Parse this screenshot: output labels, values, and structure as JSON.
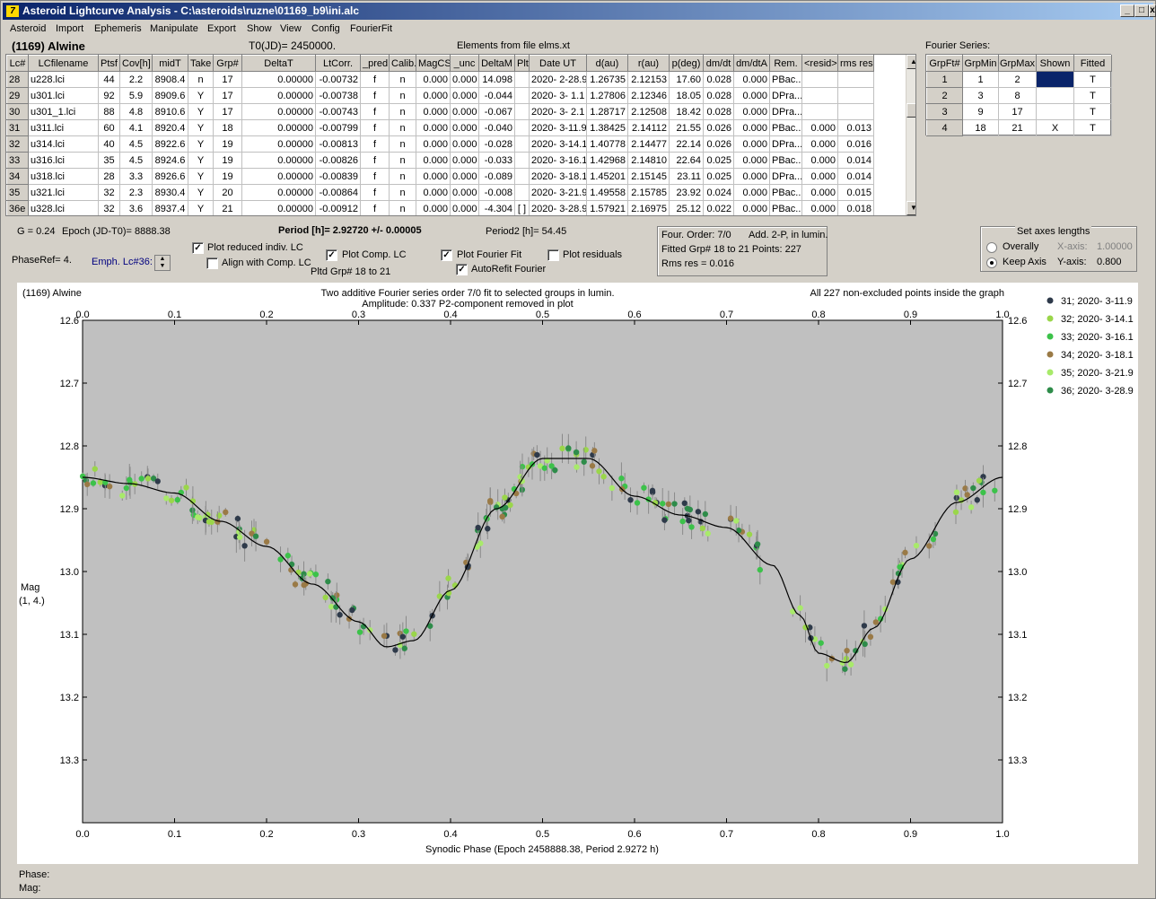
{
  "window": {
    "title": "Asteroid Lightcurve Analysis - C:\\asteroids\\ruzne\\01169_b9\\ini.alc",
    "icon_label": "7"
  },
  "menu": [
    "Asteroid",
    "Import",
    "Ephemeris",
    "Manipulate",
    "Export",
    "Show",
    "View",
    "Config",
    "FourierFit"
  ],
  "header": {
    "asteroid": "(1169) Alwine",
    "t0": "T0(JD)= 2450000.",
    "elements": "Elements from file elms.xt",
    "fourier_series_label": "Fourier Series:"
  },
  "grid": {
    "columns": [
      "Lc#",
      "LCfilename",
      "Ptsf",
      "Cov[h]",
      "midT",
      "Take",
      "Grp#",
      "DeltaT",
      "LtCorr.",
      "_pred.",
      "Calib.",
      "MagCS",
      "_unc",
      "DeltaM",
      "Plt",
      "Date UT",
      "d(au)",
      "r(au)",
      "p(deg)",
      "dm/dt",
      "dm/dtA",
      "Rem.",
      "<resid>",
      "rms res"
    ],
    "rows": [
      [
        "28",
        "u228.lci",
        "44",
        "2.2",
        "8908.4",
        "n",
        "17",
        "0.00000",
        "-0.00732",
        "f",
        "n",
        "0.000",
        "0.000",
        "14.098",
        "",
        "2020- 2-28.9",
        "1.26735",
        "2.12153",
        "17.60",
        "0.028",
        "0.000",
        "PBac...",
        "",
        ""
      ],
      [
        "29",
        "u301.lci",
        "92",
        "5.9",
        "8909.6",
        "Y",
        "17",
        "0.00000",
        "-0.00738",
        "f",
        "n",
        "0.000",
        "0.000",
        "-0.044",
        "",
        "2020- 3- 1.1",
        "1.27806",
        "2.12346",
        "18.05",
        "0.028",
        "0.000",
        "DPra...",
        "",
        ""
      ],
      [
        "30",
        "u301_1.lci",
        "88",
        "4.8",
        "8910.6",
        "Y",
        "17",
        "0.00000",
        "-0.00743",
        "f",
        "n",
        "0.000",
        "0.000",
        "-0.067",
        "",
        "2020- 3- 2.1",
        "1.28717",
        "2.12508",
        "18.42",
        "0.028",
        "0.000",
        "DPra...",
        "",
        ""
      ],
      [
        "31",
        "u311.lci",
        "60",
        "4.1",
        "8920.4",
        "Y",
        "18",
        "0.00000",
        "-0.00799",
        "f",
        "n",
        "0.000",
        "0.000",
        "-0.040",
        "",
        "2020- 3-11.9",
        "1.38425",
        "2.14112",
        "21.55",
        "0.026",
        "0.000",
        "PBac...",
        "0.000",
        "0.013"
      ],
      [
        "32",
        "u314.lci",
        "40",
        "4.5",
        "8922.6",
        "Y",
        "19",
        "0.00000",
        "-0.00813",
        "f",
        "n",
        "0.000",
        "0.000",
        "-0.028",
        "",
        "2020- 3-14.1",
        "1.40778",
        "2.14477",
        "22.14",
        "0.026",
        "0.000",
        "DPra...",
        "0.000",
        "0.016"
      ],
      [
        "33",
        "u316.lci",
        "35",
        "4.5",
        "8924.6",
        "Y",
        "19",
        "0.00000",
        "-0.00826",
        "f",
        "n",
        "0.000",
        "0.000",
        "-0.033",
        "",
        "2020- 3-16.1",
        "1.42968",
        "2.14810",
        "22.64",
        "0.025",
        "0.000",
        "PBac...",
        "0.000",
        "0.014"
      ],
      [
        "34",
        "u318.lci",
        "28",
        "3.3",
        "8926.6",
        "Y",
        "19",
        "0.00000",
        "-0.00839",
        "f",
        "n",
        "0.000",
        "0.000",
        "-0.089",
        "",
        "2020- 3-18.1",
        "1.45201",
        "2.15145",
        "23.11",
        "0.025",
        "0.000",
        "DPra...",
        "0.000",
        "0.014"
      ],
      [
        "35",
        "u321.lci",
        "32",
        "2.3",
        "8930.4",
        "Y",
        "20",
        "0.00000",
        "-0.00864",
        "f",
        "n",
        "0.000",
        "0.000",
        "-0.008",
        "",
        "2020- 3-21.9",
        "1.49558",
        "2.15785",
        "23.92",
        "0.024",
        "0.000",
        "PBac...",
        "0.000",
        "0.015"
      ],
      [
        "36e",
        "u328.lci",
        "32",
        "3.6",
        "8937.4",
        "Y",
        "21",
        "0.00000",
        "-0.00912",
        "f",
        "n",
        "0.000",
        "0.000",
        "-4.304",
        "[ ]",
        "2020- 3-28.9",
        "1.57921",
        "2.16975",
        "25.12",
        "0.022",
        "0.000",
        "PBac...",
        "0.000",
        "0.018"
      ]
    ]
  },
  "fourier_grid": {
    "columns": [
      "GrpFt#",
      "GrpMin",
      "GrpMax",
      "Shown",
      "Fitted"
    ],
    "rows": [
      [
        "1",
        "1",
        "2",
        "",
        "T"
      ],
      [
        "2",
        "3",
        "8",
        "",
        "T"
      ],
      [
        "3",
        "9",
        "17",
        "",
        "T"
      ],
      [
        "4",
        "18",
        "21",
        "X",
        "T"
      ]
    ]
  },
  "info": {
    "g": "G = 0.24",
    "epoch": "Epoch (JD-T0)= 8888.38",
    "period": "Period [h]= 2.92720 +/- 0.00005",
    "period2": "Period2 [h]= 54.45",
    "phaseref": "PhaseRef= 4.",
    "emph": "Emph. Lc#36:",
    "four_order": "Four. Order:  7/0",
    "add": "Add. 2-P, in lumin.",
    "fitted": "Fitted Grp# 18 to 21 Points: 227",
    "rms": "Rms res     = 0.016",
    "pltd": "Pltd Grp#  18 to   21"
  },
  "checks": {
    "plot_reduced": {
      "label": "Plot reduced indiv. LC",
      "checked": true
    },
    "align": {
      "label": "Align with Comp. LC",
      "checked": false
    },
    "plot_comp": {
      "label": "Plot Comp. LC",
      "checked": true
    },
    "plot_fourier": {
      "label": "Plot Fourier Fit",
      "checked": true
    },
    "plot_resid": {
      "label": "Plot residuals",
      "checked": false
    },
    "autorefit": {
      "label": "AutoRefit Fourier",
      "checked": true
    }
  },
  "axes_box": {
    "title": "Set axes lengths",
    "overally": "Overally",
    "keep": "Keep Axis",
    "xaxis_label": "X-axis:",
    "xaxis_val": "1.00000",
    "yaxis_label": "Y-axis:",
    "yaxis_val": "0.800"
  },
  "plot": {
    "title_left": "(1169) Alwine",
    "title_center": "Two additive Fourier series order 7/0 fit to selected groups in lumin.",
    "title_center2": "Amplitude: 0.337          P2-component removed in plot",
    "title_right": "All 227 non-excluded points inside the graph",
    "ylabel": "Mag",
    "ylabel2": "(1, 4.)",
    "xlabel": "Synodic Phase (Epoch 2458888.38, Period 2.9272 h)",
    "phase_label": "Phase:",
    "mag_label": "Mag:"
  },
  "chart_data": {
    "type": "scatter",
    "xlim": [
      0,
      1
    ],
    "ylim": [
      13.4,
      12.6
    ],
    "x_ticks": [
      0.0,
      0.1,
      0.2,
      0.3,
      0.4,
      0.5,
      0.6,
      0.7,
      0.8,
      0.9,
      1.0
    ],
    "y_ticks": [
      12.6,
      12.7,
      12.8,
      12.9,
      13.0,
      13.1,
      13.2,
      13.3
    ],
    "series": [
      {
        "name": "31; 2020- 3-11.9",
        "color": "#2e3a4a"
      },
      {
        "name": "32; 2020- 3-14.1",
        "color": "#9ad64a"
      },
      {
        "name": "33; 2020- 3-16.1",
        "color": "#3cc24a"
      },
      {
        "name": "34; 2020- 3-18.1",
        "color": "#9a7a46"
      },
      {
        "name": "35; 2020- 3-21.9",
        "color": "#a8ea6a"
      },
      {
        "name": "36; 2020- 3-28.9",
        "color": "#2e8c4a"
      }
    ],
    "fit_curve": [
      [
        0.0,
        12.85
      ],
      [
        0.05,
        12.86
      ],
      [
        0.1,
        12.875
      ],
      [
        0.15,
        12.92
      ],
      [
        0.2,
        12.96
      ],
      [
        0.25,
        13.02
      ],
      [
        0.3,
        13.08
      ],
      [
        0.33,
        13.12
      ],
      [
        0.36,
        13.11
      ],
      [
        0.4,
        13.03
      ],
      [
        0.45,
        12.9
      ],
      [
        0.5,
        12.82
      ],
      [
        0.55,
        12.82
      ],
      [
        0.6,
        12.88
      ],
      [
        0.65,
        12.91
      ],
      [
        0.7,
        12.93
      ],
      [
        0.75,
        12.99
      ],
      [
        0.78,
        13.07
      ],
      [
        0.8,
        13.13
      ],
      [
        0.83,
        13.145
      ],
      [
        0.86,
        13.09
      ],
      [
        0.9,
        12.98
      ],
      [
        0.95,
        12.89
      ],
      [
        1.0,
        12.85
      ]
    ]
  }
}
